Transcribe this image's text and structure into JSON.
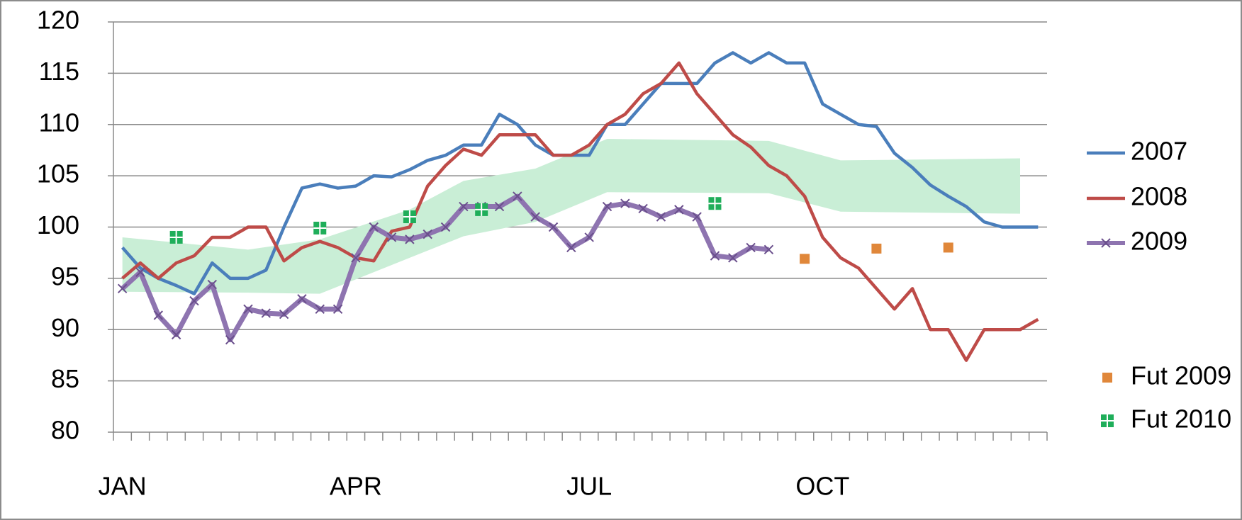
{
  "chart_data": {
    "type": "line",
    "categories": [
      "JAN",
      null,
      null,
      null,
      null,
      null,
      null,
      null,
      null,
      null,
      null,
      null,
      null,
      "APR",
      null,
      null,
      null,
      null,
      null,
      null,
      null,
      null,
      null,
      null,
      null,
      null,
      "JUL",
      null,
      null,
      null,
      null,
      null,
      null,
      null,
      null,
      null,
      null,
      null,
      null,
      "OCT",
      null,
      null,
      null,
      null,
      null,
      null,
      null,
      null,
      null,
      null,
      null,
      null
    ],
    "ylim": [
      80,
      120
    ],
    "yticks": [
      80,
      85,
      90,
      95,
      100,
      105,
      110,
      115,
      120
    ],
    "grid": true,
    "band": {
      "color": "#c9eed6",
      "high": [
        99,
        null,
        null,
        null,
        null,
        null,
        null,
        97.8,
        null,
        null,
        null,
        98.8,
        null,
        null,
        null,
        null,
        101.7,
        null,
        null,
        104.5,
        null,
        null,
        null,
        105.7,
        null,
        null,
        null,
        108.6,
        null,
        null,
        null,
        null,
        null,
        null,
        null,
        null,
        108.4,
        null,
        null,
        null,
        106.5,
        null,
        null,
        null,
        null,
        null,
        null,
        null,
        null,
        null,
        106.7,
        null
      ],
      "low": [
        93.7,
        null,
        null,
        null,
        null,
        null,
        null,
        93.6,
        null,
        null,
        null,
        93.5,
        null,
        null,
        null,
        null,
        97,
        null,
        null,
        99.1,
        null,
        null,
        null,
        100.5,
        null,
        null,
        null,
        103.4,
        null,
        null,
        null,
        null,
        null,
        null,
        null,
        null,
        103.3,
        null,
        null,
        null,
        101.5,
        null,
        null,
        null,
        null,
        null,
        null,
        null,
        null,
        null,
        101.3,
        null
      ]
    },
    "series": [
      {
        "name": "2007",
        "color": "#4a7ebb",
        "marker": "none",
        "line": true,
        "values": [
          98,
          96,
          95,
          94.3,
          93.5,
          96.5,
          95,
          95,
          95.8,
          100,
          103.8,
          104.2,
          103.8,
          104,
          105,
          104.9,
          105.6,
          106.5,
          107,
          108,
          108,
          111,
          110,
          108,
          107,
          107,
          107,
          110,
          110,
          112,
          114,
          114,
          114,
          116,
          117,
          116,
          117,
          116,
          116,
          112,
          111,
          110,
          109.8,
          107.2,
          105.8,
          104.1,
          103,
          102,
          100.5,
          100,
          100,
          100
        ]
      },
      {
        "name": "2008",
        "color": "#be4b48",
        "marker": "none",
        "line": true,
        "values": [
          95,
          96.5,
          95,
          96.5,
          97.2,
          99,
          99,
          100,
          100,
          96.7,
          98,
          98.6,
          98,
          97,
          96.7,
          99.6,
          100,
          104,
          106,
          107.6,
          107,
          109,
          109,
          109,
          107,
          107,
          108,
          110,
          111,
          113,
          114,
          116,
          113,
          111,
          109,
          107.8,
          106,
          105,
          103,
          99,
          97,
          96,
          94,
          92,
          94,
          90,
          90,
          87,
          90,
          90,
          90,
          91
        ]
      },
      {
        "name": "2009",
        "color": "#8e74b0",
        "marker": "x",
        "line": true,
        "values": [
          94,
          95.6,
          91.4,
          89.5,
          92.8,
          94.4,
          89,
          92,
          91.6,
          91.5,
          93,
          92,
          92,
          97,
          100,
          99,
          98.8,
          99.3,
          100,
          102,
          102,
          102,
          103,
          101,
          100,
          98,
          99,
          102,
          102.3,
          101.8,
          101,
          101.7,
          101,
          97.2,
          97,
          98,
          97.8,
          null,
          null,
          null,
          null,
          null,
          null,
          null,
          null,
          null,
          null,
          null,
          null,
          null,
          null,
          null
        ]
      },
      {
        "name": "Fut 2009",
        "color": "#e0873a",
        "marker": "square",
        "line": false,
        "values": [
          null,
          null,
          null,
          null,
          null,
          null,
          null,
          null,
          null,
          null,
          null,
          null,
          null,
          null,
          null,
          null,
          null,
          null,
          null,
          null,
          null,
          null,
          null,
          null,
          null,
          null,
          null,
          null,
          null,
          null,
          null,
          null,
          null,
          null,
          null,
          null,
          null,
          null,
          96.9,
          null,
          null,
          null,
          97.9,
          null,
          null,
          null,
          98,
          null,
          null,
          null,
          null,
          null
        ]
      },
      {
        "name": "Fut 2010",
        "color": "#1fae5a",
        "marker": "square-cross",
        "line": false,
        "values": [
          null,
          null,
          null,
          99,
          null,
          null,
          null,
          null,
          null,
          null,
          null,
          99.9,
          null,
          null,
          null,
          null,
          101,
          null,
          null,
          null,
          101.7,
          null,
          null,
          null,
          null,
          null,
          null,
          null,
          null,
          null,
          null,
          null,
          null,
          102.3,
          null,
          null,
          null,
          null,
          null,
          null,
          null,
          null,
          null,
          null,
          null,
          null,
          null,
          null,
          null,
          null,
          null,
          null
        ]
      }
    ]
  }
}
